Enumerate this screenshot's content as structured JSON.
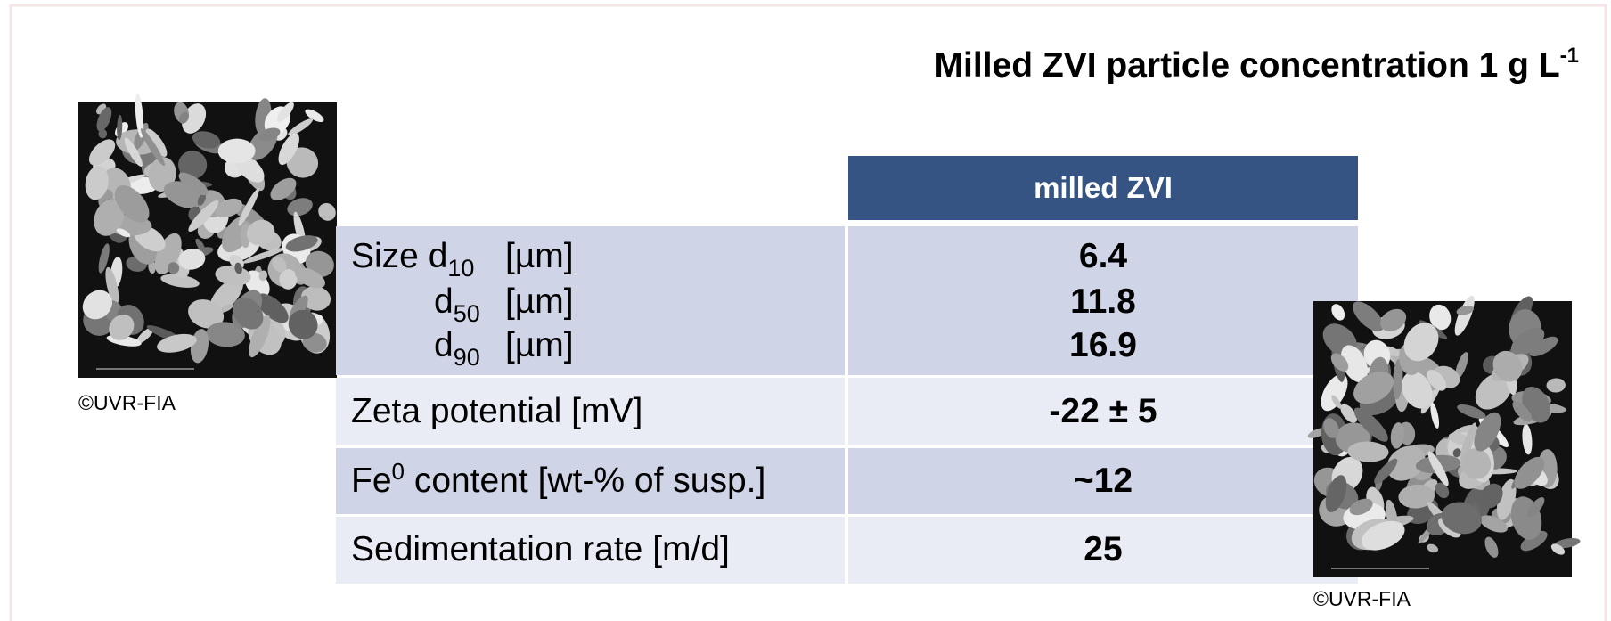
{
  "title": {
    "text": "Milled ZVI particle concentration 1 g L",
    "superscript": "-1"
  },
  "images": [
    {
      "caption": "©UVR-FIA"
    },
    {
      "caption": "©UVR-FIA"
    }
  ],
  "table": {
    "header": "milled ZVI",
    "rows": [
      {
        "label_lines": [
          [
            "Size d",
            "10",
            "[µm]"
          ],
          [
            "d",
            "50",
            "[µm]"
          ],
          [
            "d",
            "90",
            "[µm]"
          ]
        ],
        "values": [
          "6.4",
          "11.8",
          "16.9"
        ]
      },
      {
        "label": "Zeta potential [mV]",
        "values": [
          "-22 ± 5"
        ]
      },
      {
        "label_parts": [
          "Fe",
          "0",
          " content [wt-% of susp.]"
        ],
        "values": [
          "~12"
        ]
      },
      {
        "label": "Sedimentation rate [m/d]",
        "values": [
          "25"
        ]
      }
    ]
  }
}
